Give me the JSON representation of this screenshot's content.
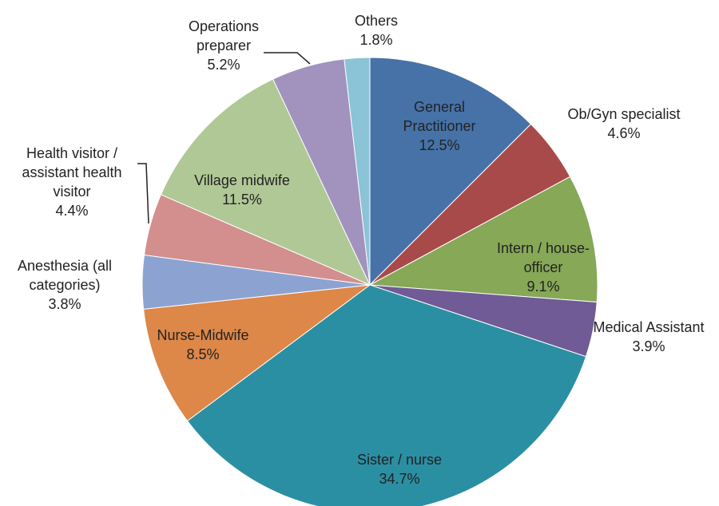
{
  "chart_data": {
    "type": "pie",
    "categories": [
      "General Practitioner",
      "Ob/Gyn specialist",
      "Intern / house-officer",
      "Medical Assistant",
      "Sister / nurse",
      "Nurse-Midwife",
      "Anesthesia (all categories)",
      "Health visitor / assistant health visitor",
      "Village midwife",
      "Operations preparer",
      "Others"
    ],
    "values": [
      12.5,
      4.6,
      9.1,
      3.9,
      34.7,
      8.5,
      3.8,
      4.4,
      11.5,
      5.2,
      1.8
    ],
    "value_labels": [
      "12.5%",
      "4.6%",
      "9.1%",
      "3.9%",
      "34.7%",
      "8.5%",
      "3.8%",
      "4.4%",
      "11.5%",
      "5.2%",
      "1.8%"
    ],
    "colors": [
      "#4672a8",
      "#a84a4a",
      "#86a857",
      "#705b96",
      "#2b8fa3",
      "#dd8748",
      "#8ca3d2",
      "#d38e8e",
      "#b0c896",
      "#a193bd",
      "#8bc3d7"
    ]
  }
}
